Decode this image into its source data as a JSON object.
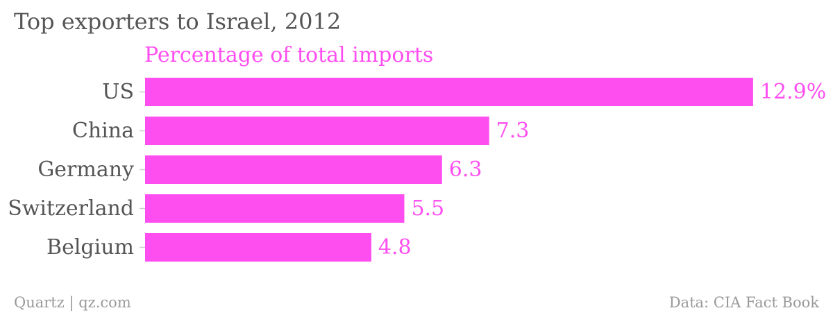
{
  "chart_data": {
    "type": "bar",
    "orientation": "horizontal",
    "title": "Top exporters to Israel, 2012",
    "subtitle": "Percentage of total imports",
    "categories": [
      "US",
      "China",
      "Germany",
      "Switzerland",
      "Belgium"
    ],
    "values": [
      12.9,
      7.3,
      6.3,
      5.5,
      4.8
    ],
    "value_labels": [
      "12.9%",
      "7.3",
      "6.3",
      "5.5",
      "4.8"
    ],
    "bar_color": "#ff4ef0",
    "label_color": "#ff4ef0",
    "category_label_color": "#555555",
    "grid": false,
    "legend": "none"
  },
  "footer": {
    "source_left": "Quartz | qz.com",
    "source_right": "Data: CIA Fact Book"
  },
  "colors": {
    "title": "#555555",
    "accent": "#ff4ef0",
    "footer": "#999999",
    "axis_tick": "#cccccc"
  }
}
